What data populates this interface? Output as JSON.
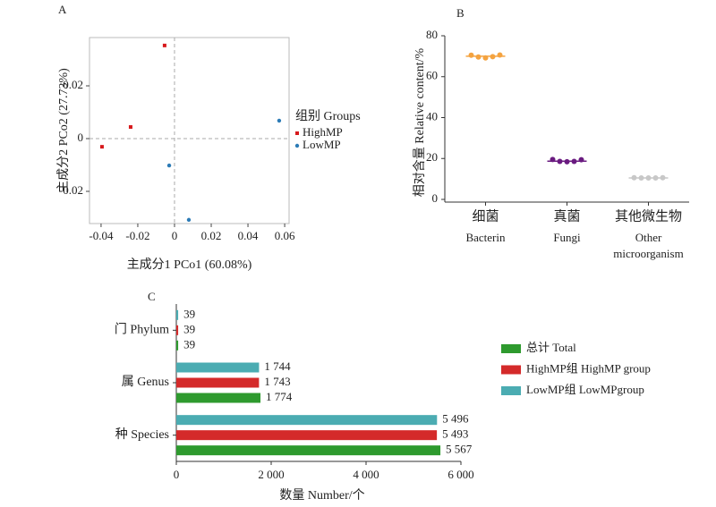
{
  "chart_data": [
    {
      "type": "scatter",
      "panel": "A",
      "xlabel": "主成分1 PCo1 (60.08%)",
      "ylabel": "主成分2 PCo2 (27.73%)",
      "legend_title": "组别 Groups",
      "xlim": [
        -0.0463,
        0.0624
      ],
      "ylim": [
        -0.0322,
        0.0383
      ],
      "xticks": [
        -0.04,
        -0.02,
        0,
        0.02,
        0.04,
        0.06
      ],
      "yticks": [
        -0.02,
        0,
        0.02
      ],
      "zero_lines": true,
      "series": [
        {
          "name": "HighMP",
          "color": "#d7191c",
          "marker": "square",
          "x": [
            -0.0054,
            -0.0239,
            -0.0395
          ],
          "values": [
            0.0353,
            0.0044,
            -0.0031
          ]
        },
        {
          "name": "LowMP",
          "color": "#2c7bb6",
          "marker": "circle",
          "x": [
            0.057,
            -0.0029,
            0.0078
          ],
          "values": [
            0.0068,
            -0.0102,
            -0.0308
          ]
        }
      ]
    },
    {
      "type": "strip",
      "panel": "B",
      "ylabel": "相对含量 Relative content/%",
      "categories": [
        "细菌",
        "真菌",
        "其他微生物"
      ],
      "categories_en": [
        [
          "Bacterin"
        ],
        [
          "Fungi"
        ],
        [
          "Other",
          "microorganism"
        ]
      ],
      "ylim": [
        0,
        80
      ],
      "yticks": [
        0,
        20,
        40,
        60,
        80
      ],
      "colors": [
        "#f4a340",
        "#6a1b80",
        "#c8c8c8"
      ],
      "values": [
        [
          70.5,
          69.6,
          69.2,
          69.8,
          70.6
        ],
        [
          19.5,
          18.6,
          18.4,
          18.6,
          19.4
        ],
        [
          10.6,
          10.5,
          10.5,
          10.5,
          10.6
        ]
      ],
      "means": [
        70,
        18.7,
        10.5
      ]
    },
    {
      "type": "barh",
      "panel": "C",
      "xlabel": "数量 Number/个",
      "categories": [
        "门 Phylum",
        "属 Genus",
        "种 Species"
      ],
      "xlim": [
        0,
        6000
      ],
      "xticks": [
        0,
        {
          "value": 2000,
          "label": "2 000"
        },
        {
          "value": 4000,
          "label": "4 000"
        },
        {
          "value": 6000,
          "label": "6 000"
        }
      ],
      "series": [
        {
          "name": "总计 Total",
          "color": "#2e9a2e",
          "values": [
            39,
            1774,
            5567
          ],
          "value_labels": [
            "39",
            "1 774",
            "5 567"
          ]
        },
        {
          "name": "HighMP组  HighMP group",
          "color": "#d42a2a",
          "values": [
            39,
            1743,
            5493
          ],
          "value_labels": [
            "39",
            "1 743",
            "5 493"
          ]
        },
        {
          "name": "LowMP组  LowMPgroup",
          "color": "#4bacb2",
          "values": [
            39,
            1744,
            5496
          ],
          "value_labels": [
            "39",
            "1 744",
            "5 496"
          ]
        }
      ]
    }
  ]
}
